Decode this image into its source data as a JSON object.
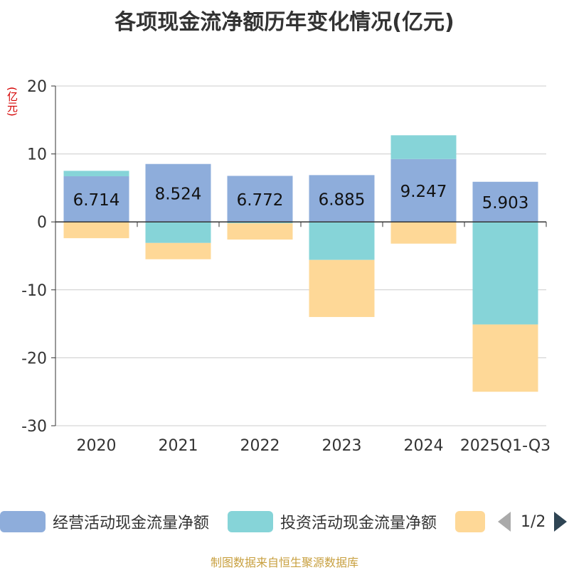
{
  "chart_data": {
    "type": "bar",
    "stacked": true,
    "title": "各项现金流净额历年变化情况(亿元)",
    "ylabel": "(亿元)",
    "ylim": [
      -30,
      20
    ],
    "yticks": [
      20,
      10,
      0,
      -10,
      -20,
      -30
    ],
    "grid": true,
    "categories": [
      "2020",
      "2021",
      "2022",
      "2023",
      "2024",
      "2025Q1-Q3"
    ],
    "series": [
      {
        "name": "经营活动现金流量净额",
        "color": "#8eaddb",
        "values": [
          6.714,
          8.524,
          6.772,
          6.885,
          9.247,
          5.903
        ],
        "labels": [
          "6.714",
          "8.524",
          "6.772",
          "6.885",
          "9.247",
          "5.903"
        ]
      },
      {
        "name": "投资活动现金流量净额",
        "color": "#86d4d8",
        "values": [
          0.8,
          -3.1,
          -0.2,
          -5.6,
          3.5,
          -15.1
        ]
      },
      {
        "name": "",
        "color": "#fed897",
        "values": [
          -2.4,
          -2.4,
          -2.4,
          -8.4,
          -3.2,
          -9.9
        ]
      }
    ],
    "legend_position": "bottom"
  },
  "legend": {
    "items": [
      {
        "label": "经营活动现金流量净额",
        "color": "#8eaddb"
      },
      {
        "label": "投资活动现金流量净额",
        "color": "#86d4d8"
      },
      {
        "label": "",
        "color": "#fed897"
      }
    ],
    "page_text": "1/2"
  },
  "source_text": "制图数据来自恒生聚源数据库"
}
